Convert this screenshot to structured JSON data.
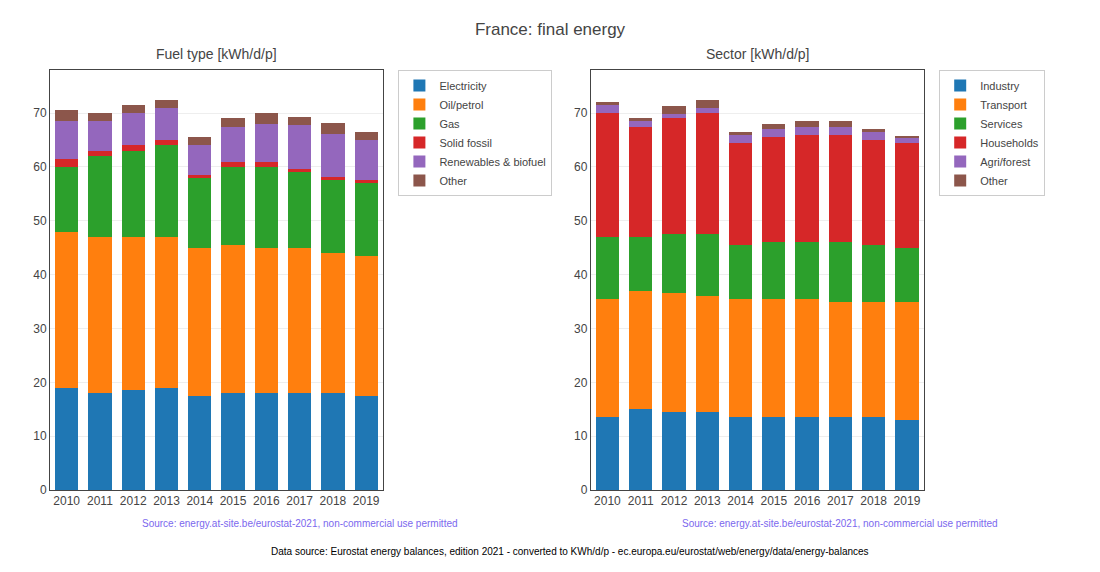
{
  "title": "France: final energy",
  "annotations": [
    "Data source: Eurostat energy balances, edition 2021 - converted to KWh/d/p - ec.europa.eu/eurostat/web/energy/data/energy-balances"
  ],
  "chart_data": [
    {
      "type": "bar",
      "title": "Fuel type [kWh/d/p]",
      "categories": [
        "2010",
        "2011",
        "2012",
        "2013",
        "2014",
        "2015",
        "2016",
        "2017",
        "2018",
        "2019"
      ],
      "series": [
        {
          "name": "Electricity",
          "color": "#1f77b4",
          "values": [
            19.0,
            18.0,
            18.5,
            19.0,
            17.5,
            18.0,
            18.0,
            18.0,
            18.0,
            17.5
          ]
        },
        {
          "name": "Oil/petrol",
          "color": "#ff7f0e",
          "values": [
            29.0,
            29.0,
            28.5,
            28.0,
            27.5,
            27.5,
            27.0,
            27.0,
            26.0,
            26.0
          ]
        },
        {
          "name": "Gas",
          "color": "#2ca02c",
          "values": [
            12.0,
            15.0,
            16.0,
            17.0,
            13.0,
            14.5,
            15.0,
            14.0,
            13.5,
            13.5
          ]
        },
        {
          "name": "Solid fossil",
          "color": "#d62728",
          "values": [
            1.5,
            1.0,
            1.0,
            1.0,
            0.5,
            1.0,
            1.0,
            0.7,
            0.7,
            0.5
          ]
        },
        {
          "name": "Renewables & biofuel",
          "color": "#9467bd",
          "values": [
            7.0,
            5.5,
            6.0,
            6.0,
            5.5,
            6.5,
            7.0,
            8.0,
            8.0,
            7.5
          ]
        },
        {
          "name": "Other",
          "color": "#8c564b",
          "values": [
            2.0,
            1.5,
            1.5,
            1.5,
            1.5,
            1.5,
            2.0,
            1.5,
            2.0,
            1.5
          ]
        }
      ],
      "ylim": [
        0,
        78
      ],
      "yticks": [
        0,
        10,
        20,
        30,
        40,
        50,
        60,
        70
      ],
      "grid": true,
      "stacked": true,
      "legend": "right",
      "annotations": [
        "Source: energy.at-site.be/eurostat-2021, non-commercial use permitted"
      ]
    },
    {
      "type": "bar",
      "title": "Sector [kWh/d/p]",
      "categories": [
        "2010",
        "2011",
        "2012",
        "2013",
        "2014",
        "2015",
        "2016",
        "2017",
        "2018",
        "2019"
      ],
      "series": [
        {
          "name": "Industry",
          "color": "#1f77b4",
          "values": [
            13.5,
            15.0,
            14.5,
            14.5,
            13.5,
            13.5,
            13.5,
            13.5,
            13.5,
            13.0
          ]
        },
        {
          "name": "Transport",
          "color": "#ff7f0e",
          "values": [
            22.0,
            22.0,
            22.0,
            21.5,
            22.0,
            22.0,
            22.0,
            21.5,
            21.5,
            22.0
          ]
        },
        {
          "name": "Services",
          "color": "#2ca02c",
          "values": [
            11.5,
            10.0,
            11.0,
            11.5,
            10.0,
            10.5,
            10.5,
            11.0,
            10.5,
            10.0
          ]
        },
        {
          "name": "Households",
          "color": "#d62728",
          "values": [
            23.0,
            20.5,
            21.5,
            22.5,
            19.0,
            19.5,
            20.0,
            20.0,
            19.5,
            19.5
          ]
        },
        {
          "name": "Agri/forest",
          "color": "#9467bd",
          "values": [
            1.5,
            1.0,
            0.8,
            1.0,
            1.5,
            1.5,
            1.5,
            1.5,
            1.5,
            0.8
          ]
        },
        {
          "name": "Other",
          "color": "#8c564b",
          "values": [
            0.5,
            0.5,
            1.5,
            1.5,
            0.5,
            1.0,
            1.0,
            1.0,
            0.5,
            0.5
          ]
        }
      ],
      "ylim": [
        0,
        78
      ],
      "yticks": [
        0,
        10,
        20,
        30,
        40,
        50,
        60,
        70
      ],
      "grid": true,
      "stacked": true,
      "legend": "right",
      "annotations": [
        "Source: energy.at-site.be/eurostat-2021, non-commercial use permitted"
      ]
    }
  ]
}
